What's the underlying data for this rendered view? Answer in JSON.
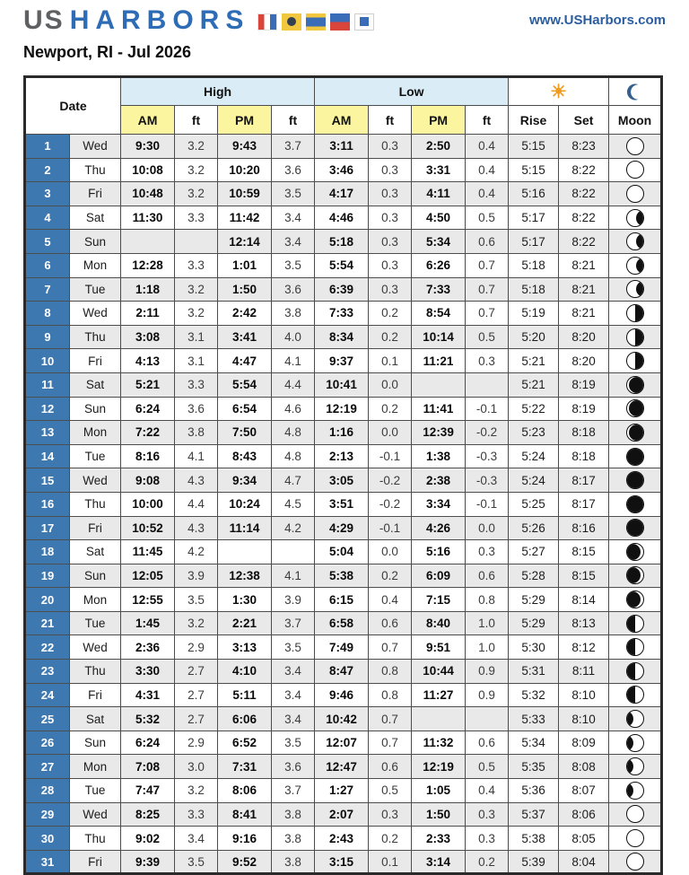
{
  "header": {
    "logo_us": "US",
    "logo_harbors": "HARBORS",
    "flags": [
      "signal-flag-t",
      "signal-flag-i",
      "signal-flag-d",
      "signal-flag-e",
      "signal-flag-s"
    ],
    "website": "www.USHarbors.com",
    "title": "Newport, RI - Jul 2026"
  },
  "colors": {
    "logo_gray": "#5f6062",
    "logo_blue": "#2e6cb5",
    "website_blue": "#2b5d9e",
    "day_cell_blue": "#3e78b1",
    "group_header_blue": "#daedf7",
    "ampm_yellow": "#fbf5a0",
    "row_alt_gray": "#e9e9e9",
    "sun_orange": "#f29c1f",
    "moon_header_blue": "#35608d"
  },
  "table": {
    "headers": {
      "date": "Date",
      "high": "High",
      "low": "Low",
      "am": "AM",
      "ft": "ft",
      "pm": "PM",
      "rise": "Rise",
      "set": "Set",
      "moon": "Moon",
      "sun_icon": "sun-icon",
      "moon_icon": "crescent-moon-icon"
    },
    "rows": [
      {
        "day": "1",
        "weekday": "Wed",
        "high_am": "9:30",
        "high_am_ft": "3.2",
        "high_pm": "9:43",
        "high_pm_ft": "3.7",
        "low_am": "3:11",
        "low_am_ft": "0.3",
        "low_pm": "2:50",
        "low_pm_ft": "0.4",
        "rise": "5:15",
        "set": "8:23",
        "moon": "full"
      },
      {
        "day": "2",
        "weekday": "Thu",
        "high_am": "10:08",
        "high_am_ft": "3.2",
        "high_pm": "10:20",
        "high_pm_ft": "3.6",
        "low_am": "3:46",
        "low_am_ft": "0.3",
        "low_pm": "3:31",
        "low_pm_ft": "0.4",
        "rise": "5:15",
        "set": "8:22",
        "moon": "full"
      },
      {
        "day": "3",
        "weekday": "Fri",
        "high_am": "10:48",
        "high_am_ft": "3.2",
        "high_pm": "10:59",
        "high_pm_ft": "3.5",
        "low_am": "4:17",
        "low_am_ft": "0.3",
        "low_pm": "4:11",
        "low_pm_ft": "0.4",
        "rise": "5:16",
        "set": "8:22",
        "moon": "full"
      },
      {
        "day": "4",
        "weekday": "Sat",
        "high_am": "11:30",
        "high_am_ft": "3.3",
        "high_pm": "11:42",
        "high_pm_ft": "3.4",
        "low_am": "4:46",
        "low_am_ft": "0.3",
        "low_pm": "4:50",
        "low_pm_ft": "0.5",
        "rise": "5:17",
        "set": "8:22",
        "moon": "waning-gibbous"
      },
      {
        "day": "5",
        "weekday": "Sun",
        "high_am": "",
        "high_am_ft": "",
        "high_pm": "12:14",
        "high_pm_ft": "3.4",
        "low_am": "5:18",
        "low_am_ft": "0.3",
        "low_pm": "5:34",
        "low_pm_ft": "0.6",
        "rise": "5:17",
        "set": "8:22",
        "moon": "waning-gibbous"
      },
      {
        "day": "6",
        "weekday": "Mon",
        "high_am": "12:28",
        "high_am_ft": "3.3",
        "high_pm": "1:01",
        "high_pm_ft": "3.5",
        "low_am": "5:54",
        "low_am_ft": "0.3",
        "low_pm": "6:26",
        "low_pm_ft": "0.7",
        "rise": "5:18",
        "set": "8:21",
        "moon": "waning-gibbous"
      },
      {
        "day": "7",
        "weekday": "Tue",
        "high_am": "1:18",
        "high_am_ft": "3.2",
        "high_pm": "1:50",
        "high_pm_ft": "3.6",
        "low_am": "6:39",
        "low_am_ft": "0.3",
        "low_pm": "7:33",
        "low_pm_ft": "0.7",
        "rise": "5:18",
        "set": "8:21",
        "moon": "waning-gibbous"
      },
      {
        "day": "8",
        "weekday": "Wed",
        "high_am": "2:11",
        "high_am_ft": "3.2",
        "high_pm": "2:42",
        "high_pm_ft": "3.8",
        "low_am": "7:33",
        "low_am_ft": "0.2",
        "low_pm": "8:54",
        "low_pm_ft": "0.7",
        "rise": "5:19",
        "set": "8:21",
        "moon": "last-quarter"
      },
      {
        "day": "9",
        "weekday": "Thu",
        "high_am": "3:08",
        "high_am_ft": "3.1",
        "high_pm": "3:41",
        "high_pm_ft": "4.0",
        "low_am": "8:34",
        "low_am_ft": "0.2",
        "low_pm": "10:14",
        "low_pm_ft": "0.5",
        "rise": "5:20",
        "set": "8:20",
        "moon": "last-quarter"
      },
      {
        "day": "10",
        "weekday": "Fri",
        "high_am": "4:13",
        "high_am_ft": "3.1",
        "high_pm": "4:47",
        "high_pm_ft": "4.1",
        "low_am": "9:37",
        "low_am_ft": "0.1",
        "low_pm": "11:21",
        "low_pm_ft": "0.3",
        "rise": "5:21",
        "set": "8:20",
        "moon": "last-quarter"
      },
      {
        "day": "11",
        "weekday": "Sat",
        "high_am": "5:21",
        "high_am_ft": "3.3",
        "high_pm": "5:54",
        "high_pm_ft": "4.4",
        "low_am": "10:41",
        "low_am_ft": "0.0",
        "low_pm": "",
        "low_pm_ft": "",
        "rise": "5:21",
        "set": "8:19",
        "moon": "waning-crescent"
      },
      {
        "day": "12",
        "weekday": "Sun",
        "high_am": "6:24",
        "high_am_ft": "3.6",
        "high_pm": "6:54",
        "high_pm_ft": "4.6",
        "low_am": "12:19",
        "low_am_ft": "0.2",
        "low_pm": "11:41",
        "low_pm_ft": "-0.1",
        "rise": "5:22",
        "set": "8:19",
        "moon": "waning-crescent"
      },
      {
        "day": "13",
        "weekday": "Mon",
        "high_am": "7:22",
        "high_am_ft": "3.8",
        "high_pm": "7:50",
        "high_pm_ft": "4.8",
        "low_am": "1:16",
        "low_am_ft": "0.0",
        "low_pm": "12:39",
        "low_pm_ft": "-0.2",
        "rise": "5:23",
        "set": "8:18",
        "moon": "waning-crescent"
      },
      {
        "day": "14",
        "weekday": "Tue",
        "high_am": "8:16",
        "high_am_ft": "4.1",
        "high_pm": "8:43",
        "high_pm_ft": "4.8",
        "low_am": "2:13",
        "low_am_ft": "-0.1",
        "low_pm": "1:38",
        "low_pm_ft": "-0.3",
        "rise": "5:24",
        "set": "8:18",
        "moon": "new"
      },
      {
        "day": "15",
        "weekday": "Wed",
        "high_am": "9:08",
        "high_am_ft": "4.3",
        "high_pm": "9:34",
        "high_pm_ft": "4.7",
        "low_am": "3:05",
        "low_am_ft": "-0.2",
        "low_pm": "2:38",
        "low_pm_ft": "-0.3",
        "rise": "5:24",
        "set": "8:17",
        "moon": "new"
      },
      {
        "day": "16",
        "weekday": "Thu",
        "high_am": "10:00",
        "high_am_ft": "4.4",
        "high_pm": "10:24",
        "high_pm_ft": "4.5",
        "low_am": "3:51",
        "low_am_ft": "-0.2",
        "low_pm": "3:34",
        "low_pm_ft": "-0.1",
        "rise": "5:25",
        "set": "8:17",
        "moon": "new"
      },
      {
        "day": "17",
        "weekday": "Fri",
        "high_am": "10:52",
        "high_am_ft": "4.3",
        "high_pm": "11:14",
        "high_pm_ft": "4.2",
        "low_am": "4:29",
        "low_am_ft": "-0.1",
        "low_pm": "4:26",
        "low_pm_ft": "0.0",
        "rise": "5:26",
        "set": "8:16",
        "moon": "new"
      },
      {
        "day": "18",
        "weekday": "Sat",
        "high_am": "11:45",
        "high_am_ft": "4.2",
        "high_pm": "",
        "high_pm_ft": "",
        "low_am": "5:04",
        "low_am_ft": "0.0",
        "low_pm": "5:16",
        "low_pm_ft": "0.3",
        "rise": "5:27",
        "set": "8:15",
        "moon": "waxing-crescent"
      },
      {
        "day": "19",
        "weekday": "Sun",
        "high_am": "12:05",
        "high_am_ft": "3.9",
        "high_pm": "12:38",
        "high_pm_ft": "4.1",
        "low_am": "5:38",
        "low_am_ft": "0.2",
        "low_pm": "6:09",
        "low_pm_ft": "0.6",
        "rise": "5:28",
        "set": "8:15",
        "moon": "waxing-crescent"
      },
      {
        "day": "20",
        "weekday": "Mon",
        "high_am": "12:55",
        "high_am_ft": "3.5",
        "high_pm": "1:30",
        "high_pm_ft": "3.9",
        "low_am": "6:15",
        "low_am_ft": "0.4",
        "low_pm": "7:15",
        "low_pm_ft": "0.8",
        "rise": "5:29",
        "set": "8:14",
        "moon": "waxing-crescent"
      },
      {
        "day": "21",
        "weekday": "Tue",
        "high_am": "1:45",
        "high_am_ft": "3.2",
        "high_pm": "2:21",
        "high_pm_ft": "3.7",
        "low_am": "6:58",
        "low_am_ft": "0.6",
        "low_pm": "8:40",
        "low_pm_ft": "1.0",
        "rise": "5:29",
        "set": "8:13",
        "moon": "first-quarter"
      },
      {
        "day": "22",
        "weekday": "Wed",
        "high_am": "2:36",
        "high_am_ft": "2.9",
        "high_pm": "3:13",
        "high_pm_ft": "3.5",
        "low_am": "7:49",
        "low_am_ft": "0.7",
        "low_pm": "9:51",
        "low_pm_ft": "1.0",
        "rise": "5:30",
        "set": "8:12",
        "moon": "first-quarter"
      },
      {
        "day": "23",
        "weekday": "Thu",
        "high_am": "3:30",
        "high_am_ft": "2.7",
        "high_pm": "4:10",
        "high_pm_ft": "3.4",
        "low_am": "8:47",
        "low_am_ft": "0.8",
        "low_pm": "10:44",
        "low_pm_ft": "0.9",
        "rise": "5:31",
        "set": "8:11",
        "moon": "first-quarter"
      },
      {
        "day": "24",
        "weekday": "Fri",
        "high_am": "4:31",
        "high_am_ft": "2.7",
        "high_pm": "5:11",
        "high_pm_ft": "3.4",
        "low_am": "9:46",
        "low_am_ft": "0.8",
        "low_pm": "11:27",
        "low_pm_ft": "0.9",
        "rise": "5:32",
        "set": "8:10",
        "moon": "first-quarter"
      },
      {
        "day": "25",
        "weekday": "Sat",
        "high_am": "5:32",
        "high_am_ft": "2.7",
        "high_pm": "6:06",
        "high_pm_ft": "3.4",
        "low_am": "10:42",
        "low_am_ft": "0.7",
        "low_pm": "",
        "low_pm_ft": "",
        "rise": "5:33",
        "set": "8:10",
        "moon": "waxing-gibbous"
      },
      {
        "day": "26",
        "weekday": "Sun",
        "high_am": "6:24",
        "high_am_ft": "2.9",
        "high_pm": "6:52",
        "high_pm_ft": "3.5",
        "low_am": "12:07",
        "low_am_ft": "0.7",
        "low_pm": "11:32",
        "low_pm_ft": "0.6",
        "rise": "5:34",
        "set": "8:09",
        "moon": "waxing-gibbous"
      },
      {
        "day": "27",
        "weekday": "Mon",
        "high_am": "7:08",
        "high_am_ft": "3.0",
        "high_pm": "7:31",
        "high_pm_ft": "3.6",
        "low_am": "12:47",
        "low_am_ft": "0.6",
        "low_pm": "12:19",
        "low_pm_ft": "0.5",
        "rise": "5:35",
        "set": "8:08",
        "moon": "waxing-gibbous"
      },
      {
        "day": "28",
        "weekday": "Tue",
        "high_am": "7:47",
        "high_am_ft": "3.2",
        "high_pm": "8:06",
        "high_pm_ft": "3.7",
        "low_am": "1:27",
        "low_am_ft": "0.5",
        "low_pm": "1:05",
        "low_pm_ft": "0.4",
        "rise": "5:36",
        "set": "8:07",
        "moon": "waxing-gibbous"
      },
      {
        "day": "29",
        "weekday": "Wed",
        "high_am": "8:25",
        "high_am_ft": "3.3",
        "high_pm": "8:41",
        "high_pm_ft": "3.8",
        "low_am": "2:07",
        "low_am_ft": "0.3",
        "low_pm": "1:50",
        "low_pm_ft": "0.3",
        "rise": "5:37",
        "set": "8:06",
        "moon": "full"
      },
      {
        "day": "30",
        "weekday": "Thu",
        "high_am": "9:02",
        "high_am_ft": "3.4",
        "high_pm": "9:16",
        "high_pm_ft": "3.8",
        "low_am": "2:43",
        "low_am_ft": "0.2",
        "low_pm": "2:33",
        "low_pm_ft": "0.3",
        "rise": "5:38",
        "set": "8:05",
        "moon": "full"
      },
      {
        "day": "31",
        "weekday": "Fri",
        "high_am": "9:39",
        "high_am_ft": "3.5",
        "high_pm": "9:52",
        "high_pm_ft": "3.8",
        "low_am": "3:15",
        "low_am_ft": "0.1",
        "low_pm": "3:14",
        "low_pm_ft": "0.2",
        "rise": "5:39",
        "set": "8:04",
        "moon": "full"
      }
    ]
  }
}
